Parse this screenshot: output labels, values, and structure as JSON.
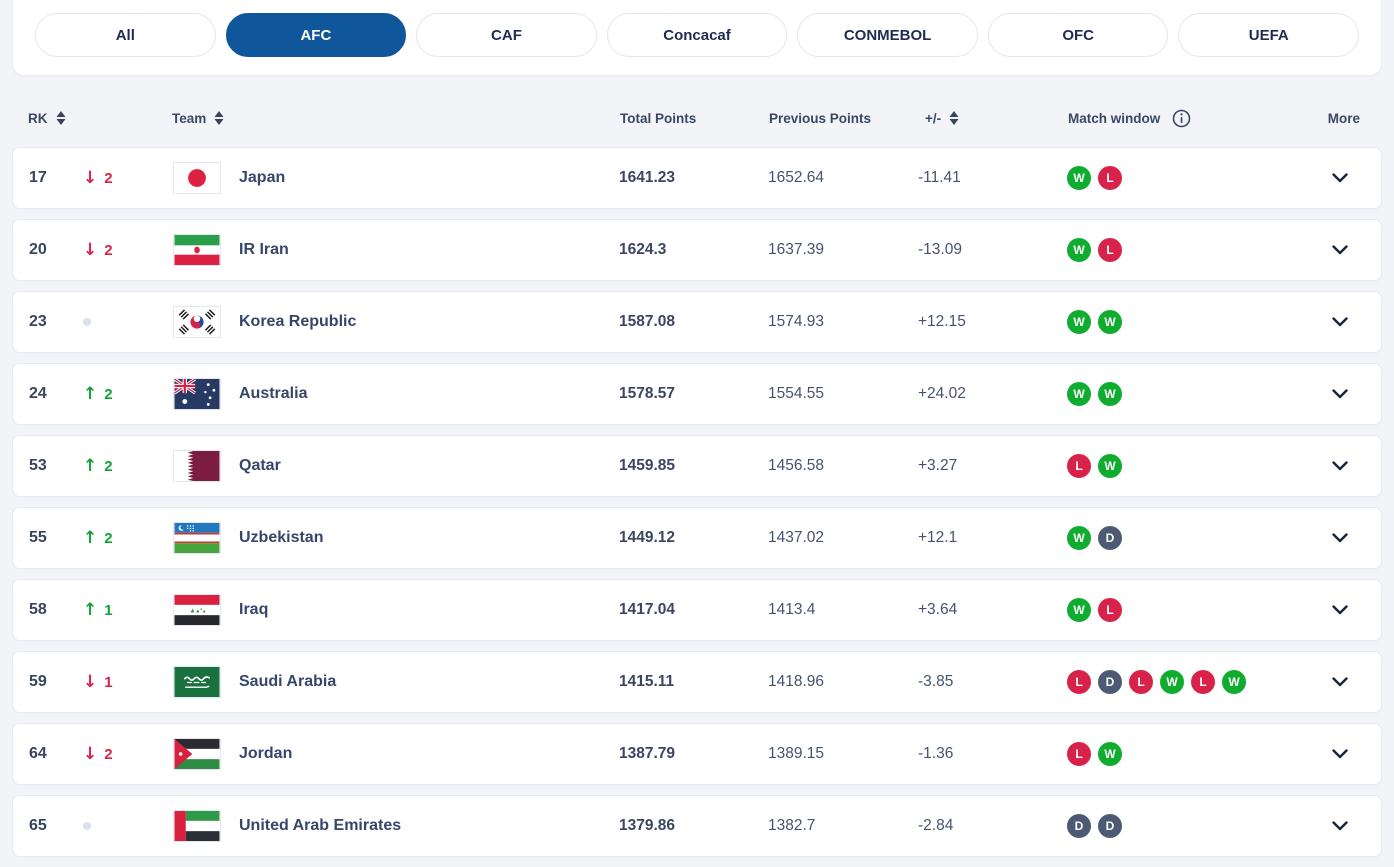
{
  "tabs": [
    {
      "label": "All",
      "active": false
    },
    {
      "label": "AFC",
      "active": true
    },
    {
      "label": "CAF",
      "active": false
    },
    {
      "label": "Concacaf",
      "active": false
    },
    {
      "label": "CONMEBOL",
      "active": false
    },
    {
      "label": "OFC",
      "active": false
    },
    {
      "label": "UEFA",
      "active": false
    }
  ],
  "table": {
    "headers": {
      "rk": "RK",
      "team": "Team",
      "total_points": "Total Points",
      "previous_points": "Previous Points",
      "plus_minus": "+/-",
      "match_window": "Match window",
      "more": "More"
    },
    "rows": [
      {
        "rank": "17",
        "change_dir": "down",
        "change_value": "2",
        "flag": "japan",
        "team": "Japan",
        "total_points": "1641.23",
        "previous_points": "1652.64",
        "diff": "-11.41",
        "matches": [
          "W",
          "L"
        ]
      },
      {
        "rank": "20",
        "change_dir": "down",
        "change_value": "2",
        "flag": "iran",
        "team": "IR Iran",
        "total_points": "1624.3",
        "previous_points": "1637.39",
        "diff": "-13.09",
        "matches": [
          "W",
          "L"
        ]
      },
      {
        "rank": "23",
        "change_dir": "none",
        "change_value": "",
        "flag": "korea",
        "team": "Korea Republic",
        "total_points": "1587.08",
        "previous_points": "1574.93",
        "diff": "+12.15",
        "matches": [
          "W",
          "W"
        ]
      },
      {
        "rank": "24",
        "change_dir": "up",
        "change_value": "2",
        "flag": "australia",
        "team": "Australia",
        "total_points": "1578.57",
        "previous_points": "1554.55",
        "diff": "+24.02",
        "matches": [
          "W",
          "W"
        ]
      },
      {
        "rank": "53",
        "change_dir": "up",
        "change_value": "2",
        "flag": "qatar",
        "team": "Qatar",
        "total_points": "1459.85",
        "previous_points": "1456.58",
        "diff": "+3.27",
        "matches": [
          "L",
          "W"
        ]
      },
      {
        "rank": "55",
        "change_dir": "up",
        "change_value": "2",
        "flag": "uzbekistan",
        "team": "Uzbekistan",
        "total_points": "1449.12",
        "previous_points": "1437.02",
        "diff": "+12.1",
        "matches": [
          "W",
          "D"
        ]
      },
      {
        "rank": "58",
        "change_dir": "up",
        "change_value": "1",
        "flag": "iraq",
        "team": "Iraq",
        "total_points": "1417.04",
        "previous_points": "1413.4",
        "diff": "+3.64",
        "matches": [
          "W",
          "L"
        ]
      },
      {
        "rank": "59",
        "change_dir": "down",
        "change_value": "1",
        "flag": "saudi-arabia",
        "team": "Saudi Arabia",
        "total_points": "1415.11",
        "previous_points": "1418.96",
        "diff": "-3.85",
        "matches": [
          "L",
          "D",
          "L",
          "W",
          "L",
          "W"
        ]
      },
      {
        "rank": "64",
        "change_dir": "down",
        "change_value": "2",
        "flag": "jordan",
        "team": "Jordan",
        "total_points": "1387.79",
        "previous_points": "1389.15",
        "diff": "-1.36",
        "matches": [
          "L",
          "W"
        ]
      },
      {
        "rank": "65",
        "change_dir": "none",
        "change_value": "",
        "flag": "uae",
        "team": "United Arab Emirates",
        "total_points": "1379.86",
        "previous_points": "1382.7",
        "diff": "-2.84",
        "matches": [
          "D",
          "D"
        ]
      }
    ]
  },
  "colors": {
    "accent": "#0f569b",
    "background": "#f2f4f8",
    "win": "#0fac2f",
    "loss": "#d8224a",
    "draw": "#4d5a73",
    "up": "#12a336",
    "down": "#d8224a"
  },
  "glyphs": {
    "up_arrow": "↑",
    "down_arrow": "↓"
  }
}
